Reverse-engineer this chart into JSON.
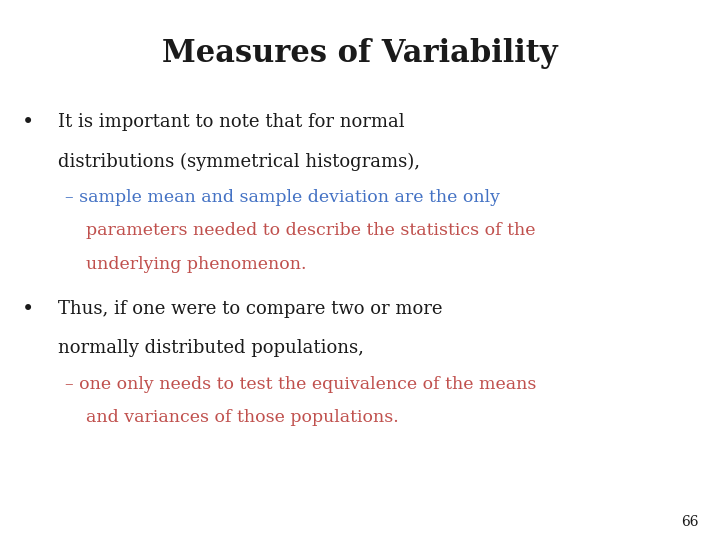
{
  "title": "Measures of Variability",
  "title_fontsize": 22,
  "title_fontweight": "bold",
  "background_color": "#ffffff",
  "text_color_black": "#1a1a1a",
  "text_color_blue": "#4472c4",
  "text_color_orange": "#c0504d",
  "page_number": "66",
  "bullet1_line1": "It is important to note that for normal",
  "bullet1_line2": "distributions (symmetrical histograms),",
  "sub1_line1": "– sample mean and sample deviation are the only",
  "sub1_line2": "parameters needed to describe the statistics of the",
  "sub1_line3": "underlying phenomenon.",
  "bullet2_line1": "Thus, if one were to compare two or more",
  "bullet2_line2": "normally distributed populations,",
  "sub2_line1": "– one only needs to test the equivalence of the means",
  "sub2_line2": "and variances of those populations.",
  "body_fontsize": 13,
  "sub_fontsize": 12.5,
  "page_num_fontsize": 10
}
